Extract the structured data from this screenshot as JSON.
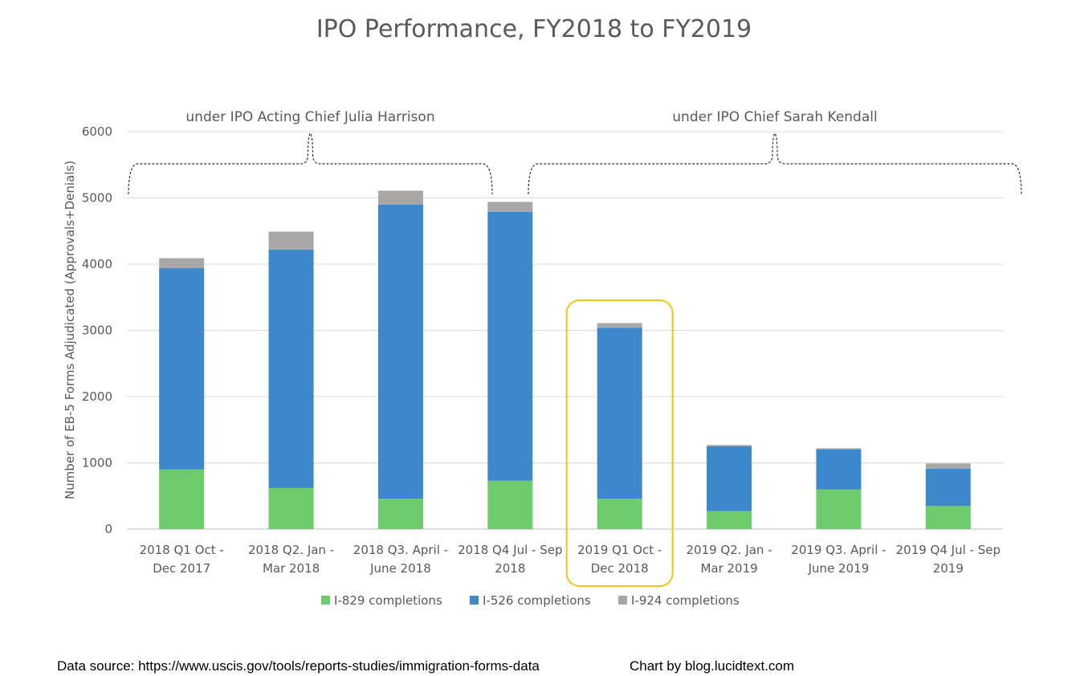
{
  "colors": {
    "i829": "#6ccb6c",
    "i526": "#3d87cb",
    "i924": "#a9a6a6",
    "highlight": "#f2c314",
    "grid": "#d9d9d9",
    "text": "#595959"
  },
  "chart_data": {
    "type": "bar",
    "stacked": true,
    "title": "IPO Performance, FY2018 to FY2019",
    "ylabel": "Number  of EB-5 Forms Adjudicated (Approvals+Denials)",
    "xlabel": "",
    "ylim": [
      0,
      6000
    ],
    "yticks": [
      "0",
      "1000",
      "2000",
      "3000",
      "4000",
      "5000",
      "6000"
    ],
    "grid": "horizontal",
    "legend_position": "bottom",
    "categories": [
      [
        "2018 Q1 Oct -",
        "Dec 2017"
      ],
      [
        "2018 Q2. Jan -",
        "Mar 2018"
      ],
      [
        "2018 Q3. April -",
        "June 2018"
      ],
      [
        "2018 Q4 Jul - Sep",
        "2018"
      ],
      [
        "2019  Q1  Oct -",
        "Dec 2018"
      ],
      [
        "2019 Q2. Jan -",
        "Mar 2019"
      ],
      [
        "2019 Q3. April -",
        "June 2019"
      ],
      [
        "2019 Q4 Jul - Sep",
        "2019"
      ]
    ],
    "series": [
      {
        "name": "I-829 completions",
        "values": [
          900,
          620,
          460,
          730,
          460,
          270,
          600,
          350
        ]
      },
      {
        "name": "I-526 completions",
        "values": [
          3040,
          3600,
          4440,
          4060,
          2580,
          980,
          600,
          560
        ]
      },
      {
        "name": "I-924 completions",
        "values": [
          150,
          270,
          210,
          150,
          70,
          20,
          20,
          80
        ]
      }
    ],
    "annotations": [
      {
        "text": "under IPO Acting Chief Julia Harrison",
        "span": [
          0,
          3
        ]
      },
      {
        "text": "under IPO Chief Sarah Kendall",
        "span": [
          4,
          7
        ]
      }
    ],
    "highlight_category": 4
  },
  "footer": {
    "source": "Data source: https://www.uscis.gov/tools/reports-studies/immigration-forms-data",
    "credit": "Chart by blog.lucidtext.com"
  }
}
